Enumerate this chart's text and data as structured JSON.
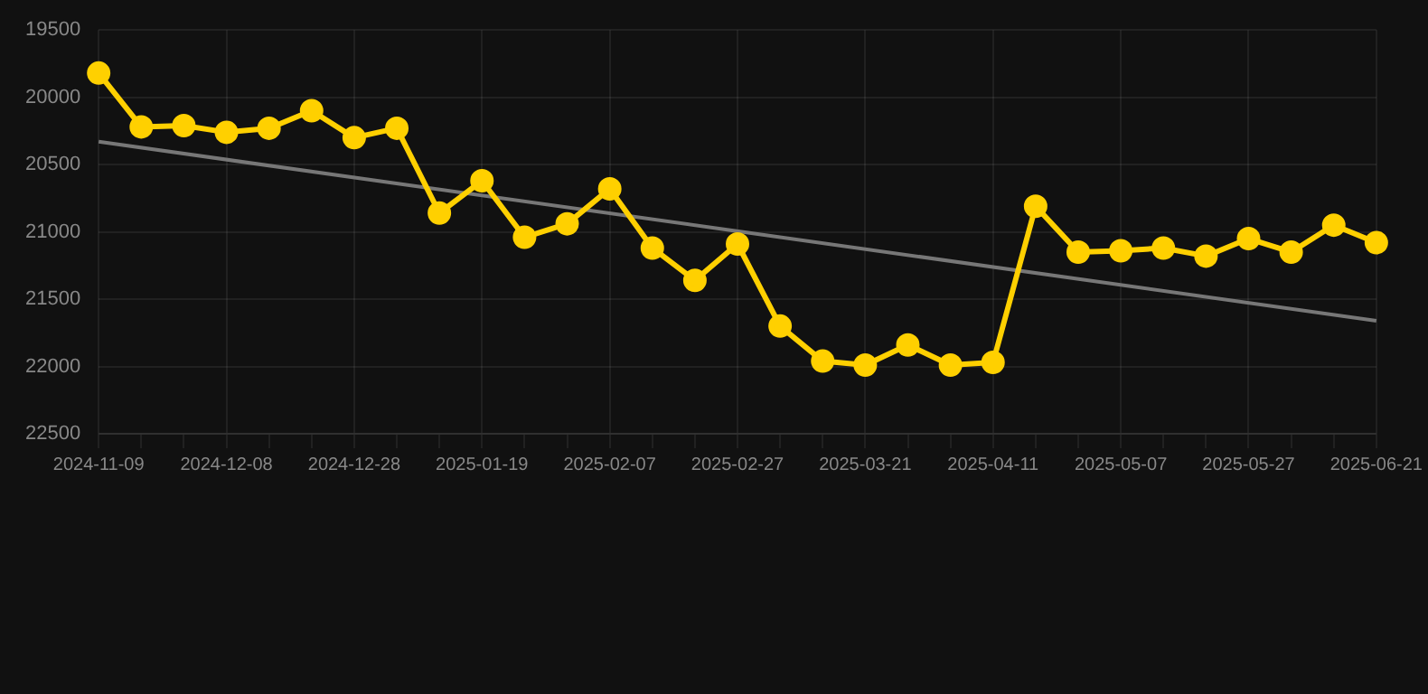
{
  "chart_data": {
    "type": "line",
    "categories": [
      "2024-11-09",
      null,
      null,
      "2024-12-08",
      null,
      null,
      "2024-12-28",
      null,
      null,
      "2025-01-19",
      null,
      null,
      "2025-02-07",
      null,
      null,
      "2025-02-27",
      null,
      null,
      "2025-03-21",
      null,
      null,
      "2025-04-11",
      null,
      null,
      "2025-05-07",
      null,
      null,
      "2025-05-27",
      null,
      null,
      "2025-06-21"
    ],
    "series": [
      {
        "color": "#ffd000",
        "marker": "circle",
        "values": [
          19820,
          20220,
          20210,
          20260,
          20230,
          20100,
          20300,
          20230,
          20860,
          20620,
          21040,
          20940,
          20680,
          21120,
          21360,
          21090,
          21700,
          21960,
          21990,
          21840,
          21990,
          21970,
          20810,
          21150,
          21140,
          21120,
          21180,
          21050,
          21150,
          20950,
          21080
        ]
      },
      {
        "color": "#777777",
        "marker": "none",
        "values": [
          20330,
          null,
          null,
          null,
          null,
          null,
          null,
          null,
          null,
          null,
          null,
          null,
          null,
          null,
          null,
          null,
          null,
          null,
          null,
          null,
          null,
          null,
          null,
          null,
          null,
          null,
          null,
          null,
          null,
          null,
          21660
        ]
      }
    ],
    "ylim": [
      22500,
      19500
    ],
    "yticks": [
      19500,
      20000,
      20500,
      21000,
      21500,
      22000,
      22500
    ],
    "grid": true,
    "legend": false
  }
}
